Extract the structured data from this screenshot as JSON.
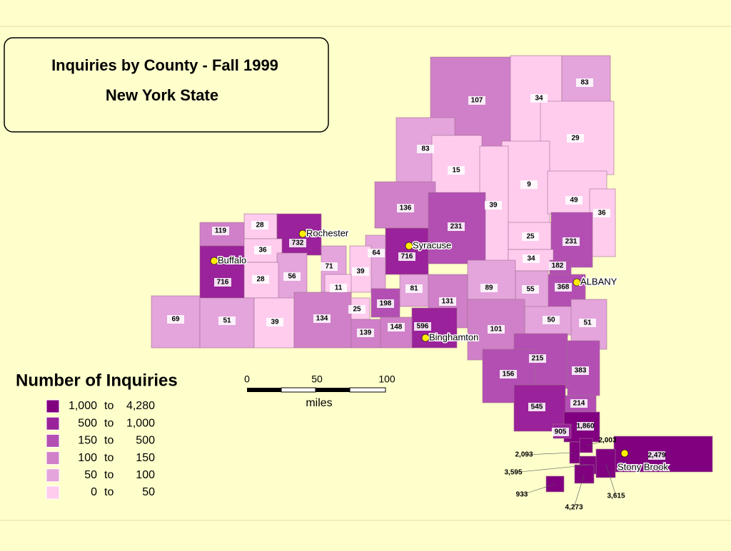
{
  "title": {
    "line1": "Inquiries by County - Fall 1999",
    "line2": "New York State"
  },
  "legend": {
    "title": "Number of Inquiries",
    "connector": "to",
    "classes": [
      {
        "min": "1,000",
        "max": "4,280"
      },
      {
        "min": "500",
        "max": "1,000"
      },
      {
        "min": "150",
        "max": "500"
      },
      {
        "min": "100",
        "max": "150"
      },
      {
        "min": "50",
        "max": "100"
      },
      {
        "min": "0",
        "max": "50"
      }
    ]
  },
  "scale": {
    "ticks": [
      "0",
      "50",
      "100"
    ],
    "unit": "miles"
  },
  "cities": [
    "Rochester",
    "Syracuse",
    "Buffalo",
    "ALBANY",
    "Binghamton",
    "Stony Brook"
  ],
  "counties": [
    "107",
    "34",
    "83",
    "29",
    "83",
    "15",
    "9",
    "39",
    "49",
    "36",
    "136",
    "231",
    "28",
    "119",
    "732",
    "36",
    "716",
    "25",
    "231",
    "64",
    "34",
    "182",
    "71",
    "39",
    "56",
    "28",
    "716",
    "368",
    "81",
    "89",
    "55",
    "11",
    "131",
    "198",
    "25",
    "69",
    "51",
    "39",
    "134",
    "50",
    "51",
    "596",
    "148",
    "139",
    "101",
    "215",
    "383",
    "156",
    "214",
    "545",
    "1,860",
    "905",
    "2,003",
    "2,479",
    "3,615",
    "2,093",
    "3,595",
    "933",
    "4,273"
  ]
}
